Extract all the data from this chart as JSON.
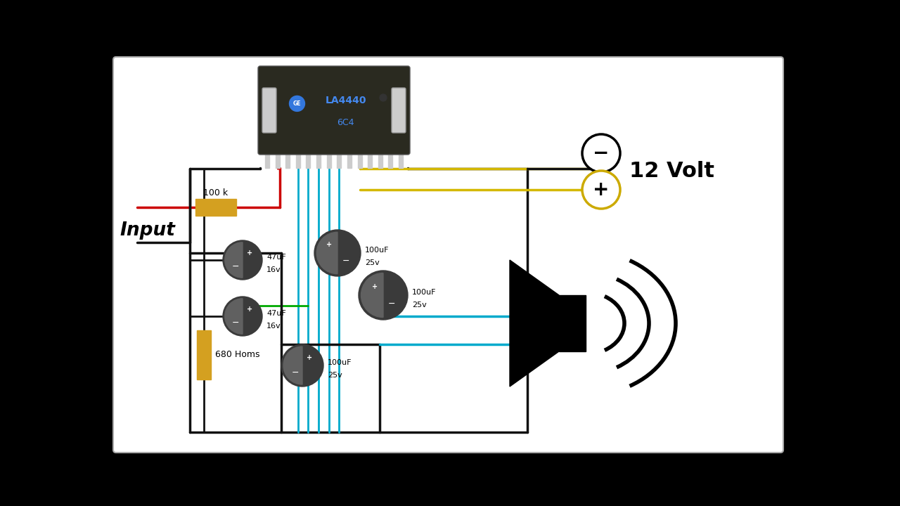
{
  "bg_outer": "#000000",
  "bg_inner": "#ffffff",
  "wire_black": "#111111",
  "wire_red": "#cc0000",
  "wire_yellow": "#d4b800",
  "wire_cyan": "#00aacc",
  "wire_green": "#00aa00",
  "cap_dark": "#3a3a3a",
  "cap_mid": "#606060",
  "cap_light": "#888888",
  "ic_body": "#2a2a20",
  "ic_text_color": "#4488ee",
  "resistor_color": "#d4a020",
  "pin_color": "#cccccc",
  "terminal_yellow_edge": "#ccaa00",
  "text_12volt": "12 Volt",
  "text_input": "Input",
  "text_100k": "100 k",
  "text_680": "680 Homs",
  "ic_label1": "LA4440",
  "ic_label2": "6C4"
}
